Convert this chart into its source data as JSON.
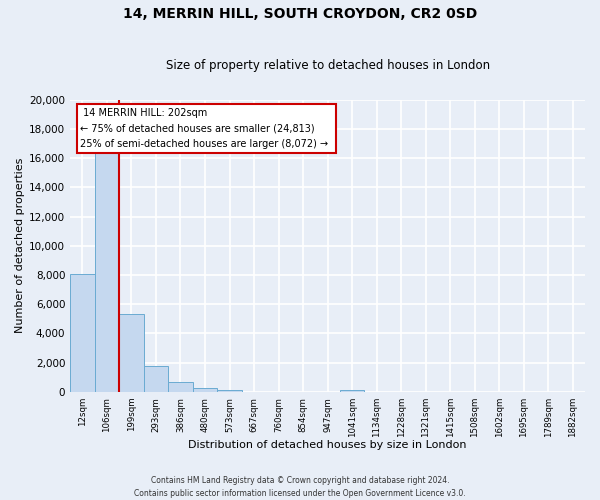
{
  "title": "14, MERRIN HILL, SOUTH CROYDON, CR2 0SD",
  "subtitle": "Size of property relative to detached houses in London",
  "xlabel": "Distribution of detached houses by size in London",
  "ylabel": "Number of detached properties",
  "bin_labels": [
    "12sqm",
    "106sqm",
    "199sqm",
    "293sqm",
    "386sqm",
    "480sqm",
    "573sqm",
    "667sqm",
    "760sqm",
    "854sqm",
    "947sqm",
    "1041sqm",
    "1134sqm",
    "1228sqm",
    "1321sqm",
    "1415sqm",
    "1508sqm",
    "1602sqm",
    "1695sqm",
    "1789sqm",
    "1882sqm"
  ],
  "bar_heights": [
    8100,
    16500,
    5300,
    1800,
    700,
    280,
    150,
    0,
    0,
    0,
    0,
    150,
    0,
    0,
    0,
    0,
    0,
    0,
    0,
    0,
    0
  ],
  "bar_color": "#c5d8ef",
  "bar_edge_color": "#6aabd2",
  "red_line_color": "#cc0000",
  "red_line_bin_index": 2.0,
  "annotation_title": "14 MERRIN HILL: 202sqm",
  "annotation_line1": "← 75% of detached houses are smaller (24,813)",
  "annotation_line2": "25% of semi-detached houses are larger (8,072) →",
  "annotation_box_color": "#ffffff",
  "annotation_box_edge_color": "#cc0000",
  "ylim": [
    0,
    20000
  ],
  "yticks": [
    0,
    2000,
    4000,
    6000,
    8000,
    10000,
    12000,
    14000,
    16000,
    18000,
    20000
  ],
  "footer_line1": "Contains HM Land Registry data © Crown copyright and database right 2024.",
  "footer_line2": "Contains public sector information licensed under the Open Government Licence v3.0.",
  "background_color": "#e8eef7",
  "grid_color": "#ffffff"
}
